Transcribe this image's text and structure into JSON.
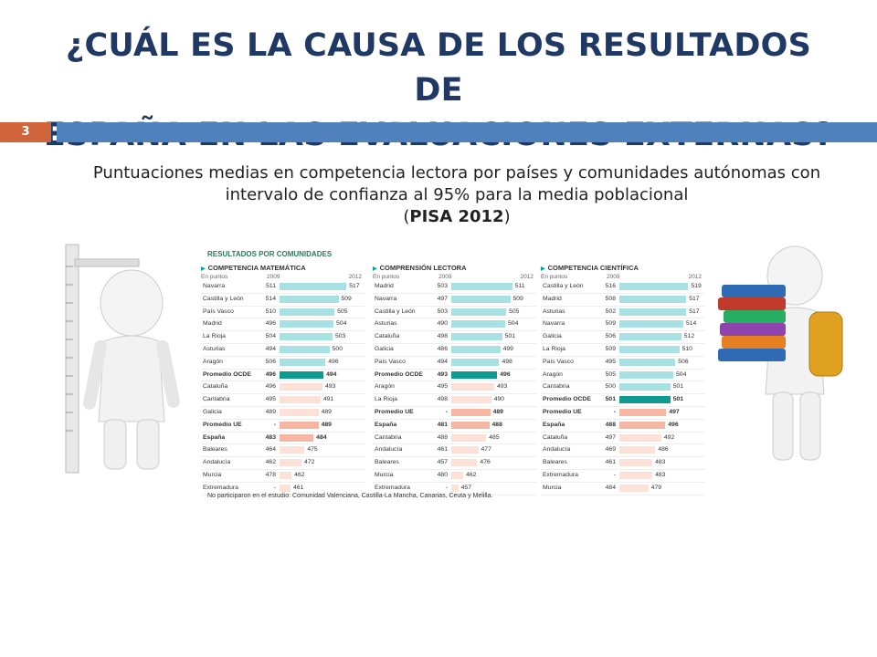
{
  "slide": {
    "title_line1": "¿CUÁL ES LA CAUSA DE LOS RESULTADOS DE",
    "title_line2": "ESPAÑA EN LAS EVALUACIONES EXTERNAS?",
    "number": "3",
    "subtitle_line1": "Puntuaciones medias en competencia lectora por países y comunidades autónomas con",
    "subtitle_line2": "intervalo de confianza al 95% para la media poblacional",
    "subtitle_line3_open": "(",
    "subtitle_line3_bold": "PISA 2012",
    "subtitle_line3_close": ")"
  },
  "colors": {
    "title": "#1f3864",
    "accent_orange": "#d0643b",
    "accent_blue": "#4f81bd",
    "bar_light_teal": "#a8e1e3",
    "bar_dark_teal": "#0e9a8e",
    "bar_light_pink": "#fbe1d8",
    "bar_pink": "#f5b7a3"
  },
  "infographic": {
    "title": "RESULTADOS POR COMUNIDADES",
    "unit_label": "En puntos",
    "year1": "2009",
    "year2": "2012",
    "footer": "No participaron en el estudio: Comunidad Valenciana, Castilla-La Mancha, Canarias, Ceuta y Melilla."
  },
  "chart_data": [
    {
      "type": "bar",
      "title": "COMPETENCIA MATEMÁTICA",
      "series": [
        {
          "name": "2009"
        },
        {
          "name": "2012"
        }
      ],
      "rows": [
        {
          "name": "Navarra",
          "v2009": "511",
          "v2012": 517,
          "tone": "teal"
        },
        {
          "name": "Castilla y León",
          "v2009": "514",
          "v2012": 509,
          "tone": "teal"
        },
        {
          "name": "País Vasco",
          "v2009": "510",
          "v2012": 505,
          "tone": "teal"
        },
        {
          "name": "Madrid",
          "v2009": "496",
          "v2012": 504,
          "tone": "teal"
        },
        {
          "name": "La Rioja",
          "v2009": "504",
          "v2012": 503,
          "tone": "teal"
        },
        {
          "name": "Asturias",
          "v2009": "494",
          "v2012": 500,
          "tone": "teal"
        },
        {
          "name": "Aragón",
          "v2009": "506",
          "v2012": 496,
          "tone": "teal"
        },
        {
          "name": "Promedio OCDE",
          "v2009": "496",
          "v2012": 494,
          "tone": "dark",
          "bold": true
        },
        {
          "name": "Cataluña",
          "v2009": "496",
          "v2012": 493,
          "tone": "light"
        },
        {
          "name": "Cantabria",
          "v2009": "495",
          "v2012": 491,
          "tone": "light"
        },
        {
          "name": "Galicia",
          "v2009": "489",
          "v2012": 489,
          "tone": "light"
        },
        {
          "name": "Promedio UE",
          "v2009": "-",
          "v2012": 489,
          "tone": "pink",
          "bold": true
        },
        {
          "name": "España",
          "v2009": "483",
          "v2012": 484,
          "tone": "pink",
          "bold": true
        },
        {
          "name": "Baleares",
          "v2009": "464",
          "v2012": 475,
          "tone": "light"
        },
        {
          "name": "Andalucía",
          "v2009": "462",
          "v2012": 472,
          "tone": "light"
        },
        {
          "name": "Murcia",
          "v2009": "478",
          "v2012": 462,
          "tone": "light"
        },
        {
          "name": "Extremadura",
          "v2009": "-",
          "v2012": 461,
          "tone": "light"
        }
      ]
    },
    {
      "type": "bar",
      "title": "COMPRENSIÓN LECTORA",
      "series": [
        {
          "name": "2009"
        },
        {
          "name": "2012"
        }
      ],
      "rows": [
        {
          "name": "Madrid",
          "v2009": "503",
          "v2012": 511,
          "tone": "teal"
        },
        {
          "name": "Navarra",
          "v2009": "497",
          "v2012": 509,
          "tone": "teal"
        },
        {
          "name": "Castilla y León",
          "v2009": "503",
          "v2012": 505,
          "tone": "teal"
        },
        {
          "name": "Asturias",
          "v2009": "490",
          "v2012": 504,
          "tone": "teal"
        },
        {
          "name": "Cataluña",
          "v2009": "498",
          "v2012": 501,
          "tone": "teal"
        },
        {
          "name": "Galicia",
          "v2009": "486",
          "v2012": 499,
          "tone": "teal"
        },
        {
          "name": "País Vasco",
          "v2009": "494",
          "v2012": 498,
          "tone": "teal"
        },
        {
          "name": "Promedio OCDE",
          "v2009": "493",
          "v2012": 496,
          "tone": "dark",
          "bold": true
        },
        {
          "name": "Aragón",
          "v2009": "495",
          "v2012": 493,
          "tone": "light"
        },
        {
          "name": "La Rioja",
          "v2009": "498",
          "v2012": 490,
          "tone": "light"
        },
        {
          "name": "Promedio UE",
          "v2009": "-",
          "v2012": 489,
          "tone": "pink",
          "bold": true
        },
        {
          "name": "España",
          "v2009": "481",
          "v2012": 488,
          "tone": "pink",
          "bold": true
        },
        {
          "name": "Cantabria",
          "v2009": "488",
          "v2012": 485,
          "tone": "light"
        },
        {
          "name": "Andalucía",
          "v2009": "461",
          "v2012": 477,
          "tone": "light"
        },
        {
          "name": "Baleares",
          "v2009": "457",
          "v2012": 476,
          "tone": "light"
        },
        {
          "name": "Murcia",
          "v2009": "480",
          "v2012": 462,
          "tone": "light"
        },
        {
          "name": "Extremadura",
          "v2009": "-",
          "v2012": 457,
          "tone": "light"
        }
      ]
    },
    {
      "type": "bar",
      "title": "COMPETENCIA CIENTÍFICA",
      "series": [
        {
          "name": "2009"
        },
        {
          "name": "2012"
        }
      ],
      "rows": [
        {
          "name": "Castilla y León",
          "v2009": "516",
          "v2012": 519,
          "tone": "teal"
        },
        {
          "name": "Madrid",
          "v2009": "508",
          "v2012": 517,
          "tone": "teal"
        },
        {
          "name": "Asturias",
          "v2009": "502",
          "v2012": 517,
          "tone": "teal"
        },
        {
          "name": "Navarra",
          "v2009": "509",
          "v2012": 514,
          "tone": "teal"
        },
        {
          "name": "Galicia",
          "v2009": "506",
          "v2012": 512,
          "tone": "teal"
        },
        {
          "name": "La Rioja",
          "v2009": "509",
          "v2012": 510,
          "tone": "teal"
        },
        {
          "name": "País Vasco",
          "v2009": "495",
          "v2012": 506,
          "tone": "teal"
        },
        {
          "name": "Aragón",
          "v2009": "505",
          "v2012": 504,
          "tone": "teal"
        },
        {
          "name": "Cantabria",
          "v2009": "500",
          "v2012": 501,
          "tone": "teal"
        },
        {
          "name": "Promedio OCDE",
          "v2009": "501",
          "v2012": 501,
          "tone": "dark",
          "bold": true
        },
        {
          "name": "Promedio UE",
          "v2009": "-",
          "v2012": 497,
          "tone": "pink",
          "bold": true
        },
        {
          "name": "España",
          "v2009": "488",
          "v2012": 496,
          "tone": "pink",
          "bold": true
        },
        {
          "name": "Cataluña",
          "v2009": "497",
          "v2012": 492,
          "tone": "light"
        },
        {
          "name": "Andalucía",
          "v2009": "469",
          "v2012": 486,
          "tone": "light"
        },
        {
          "name": "Baleares",
          "v2009": "461",
          "v2012": 483,
          "tone": "light"
        },
        {
          "name": "Extremadura",
          "v2009": "-",
          "v2012": 483,
          "tone": "light"
        },
        {
          "name": "Murcia",
          "v2009": "484",
          "v2012": 479,
          "tone": "light"
        }
      ]
    }
  ]
}
